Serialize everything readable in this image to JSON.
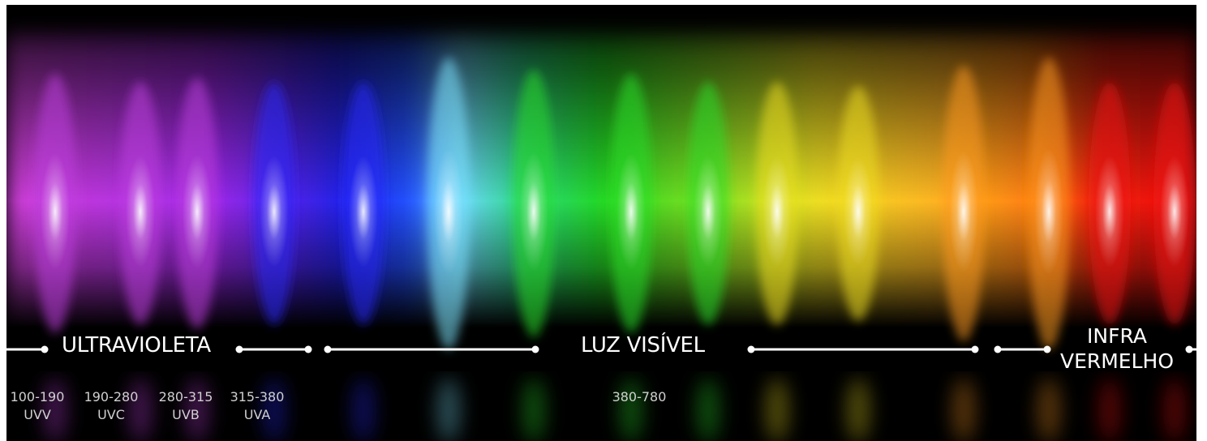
{
  "regions": {
    "uv": "ULTRAVIOLETA",
    "visible": "LUZ VISÍVEL",
    "ir_line1": "INFRA",
    "ir_line2": "VERMELHO"
  },
  "bands": [
    {
      "range": "100-190",
      "name": "UVV"
    },
    {
      "range": "190-280",
      "name": "UVC"
    },
    {
      "range": "280-315",
      "name": "UVB"
    },
    {
      "range": "315-380",
      "name": "UVA"
    }
  ],
  "visible_range": "380-780",
  "colors": {
    "background": "#000000",
    "line": "#ffffff",
    "violet": "#c040e0",
    "blue": "#2a2aff",
    "cyan": "#7fe8ff",
    "green": "#2ce02c",
    "yellow": "#f0e020",
    "orange": "#ff9a20",
    "red": "#ee1010"
  }
}
